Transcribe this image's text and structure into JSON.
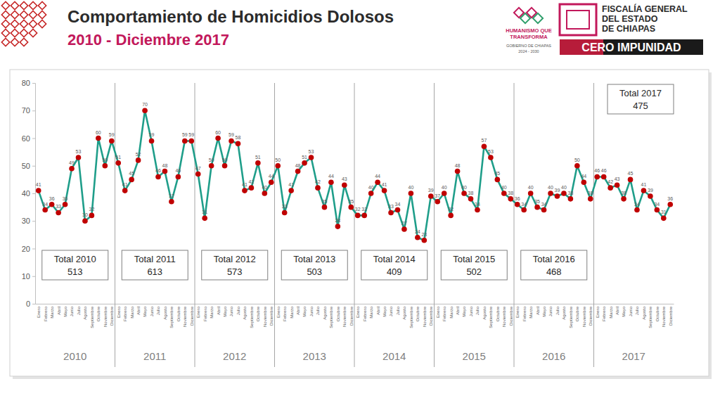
{
  "chart_data": {
    "type": "line",
    "title": "Comportamiento de Homicidios Dolosos",
    "subtitle": "2010 - Diciembre 2017",
    "categories": [
      "Enero",
      "Febrero",
      "Marzo",
      "Abril",
      "Mayo",
      "Junio",
      "Julio",
      "Agosto",
      "Septiembre",
      "Octubre",
      "Noviembre",
      "Diciembre",
      "Enero",
      "Febrero",
      "Marzo",
      "Abril",
      "Mayo",
      "Junio",
      "Julio",
      "Agosto",
      "Septiembre",
      "Octubre",
      "Noviembre",
      "Diciembre",
      "Enero",
      "Febrero",
      "Marzo",
      "Abril",
      "Mayo",
      "Junio",
      "Julio",
      "Agosto",
      "Septiembre",
      "Octubre",
      "Noviembre",
      "Diciembre",
      "Enero",
      "Febrero",
      "Marzo",
      "Abril",
      "Mayo",
      "Junio",
      "Julio",
      "Agosto",
      "Septiembre",
      "Octubre",
      "Noviembre",
      "Diciembre",
      "Enero",
      "Febrero",
      "Marzo",
      "Abril",
      "Mayo",
      "Junio",
      "Julio",
      "Agosto",
      "Septiembre",
      "Octubre",
      "Noviembre",
      "Diciembre",
      "Enero",
      "Febrero",
      "Marzo",
      "Abril",
      "Mayo",
      "Junio",
      "Julio",
      "Agosto",
      "Septiembre",
      "Octubre",
      "Noviembre",
      "Diciembre",
      "Enero",
      "Febrero",
      "Marzo",
      "Abril",
      "Mayo",
      "Junio",
      "Julio",
      "Agosto",
      "Septiembre",
      "Octubre",
      "Noviembre",
      "Diciembre",
      "Enero",
      "Febrero",
      "Marzo",
      "Abril",
      "Mayo",
      "Junio",
      "Julio",
      "Agosto",
      "Septiembre",
      "Octubre",
      "Noviembre",
      "Diciembre"
    ],
    "values": [
      41,
      34,
      36,
      33,
      36,
      49,
      53,
      30,
      32,
      60,
      50,
      59,
      51,
      41,
      45,
      52,
      70,
      59,
      46,
      48,
      37,
      46,
      59,
      59,
      47,
      31,
      50,
      60,
      50,
      59,
      58,
      41,
      42,
      51,
      40,
      44,
      50,
      33,
      41,
      48,
      51,
      53,
      42,
      35,
      44,
      28,
      43,
      35,
      32,
      32,
      40,
      44,
      41,
      33,
      34,
      27,
      40,
      24,
      23,
      39,
      37,
      40,
      32,
      48,
      40,
      38,
      34,
      57,
      53,
      45,
      40,
      38,
      36,
      34,
      40,
      35,
      34,
      40,
      39,
      40,
      38,
      50,
      44,
      38,
      46,
      46,
      42,
      43,
      38,
      45,
      34,
      41,
      39,
      34,
      31,
      36
    ],
    "color": "#1f9e8a",
    "marker": "circle",
    "marker_color": "#c00000",
    "data_labels": true,
    "grid": false,
    "ylim": [
      0,
      80
    ],
    "yticks": [
      0,
      10,
      20,
      30,
      40,
      50,
      60,
      70,
      80
    ],
    "groups": [
      {
        "label": "2010",
        "total_label": "Total 2010",
        "total": 513
      },
      {
        "label": "2011",
        "total_label": "Total 2011",
        "total": 613
      },
      {
        "label": "2012",
        "total_label": "Total 2012",
        "total": 573
      },
      {
        "label": "2013",
        "total_label": "Total 2013",
        "total": 503
      },
      {
        "label": "2014",
        "total_label": "Total 2014",
        "total": 409
      },
      {
        "label": "2015",
        "total_label": "Total 2015",
        "total": 502
      },
      {
        "label": "2016",
        "total_label": "Total 2016",
        "total": 468
      },
      {
        "label": "2017",
        "total_label": "Total 2017",
        "total": 475
      }
    ]
  },
  "header": {
    "government": [
      "HUMANISMO QUE",
      "TRANSFORMA",
      "GOBIERNO DE CHIAPAS",
      "2024 - 2030"
    ],
    "fiscalia": [
      "FISCALÍA GENERAL",
      "DEL ESTADO",
      "DE CHIAPAS"
    ],
    "badge": "CERO IMPUNIDAD"
  }
}
